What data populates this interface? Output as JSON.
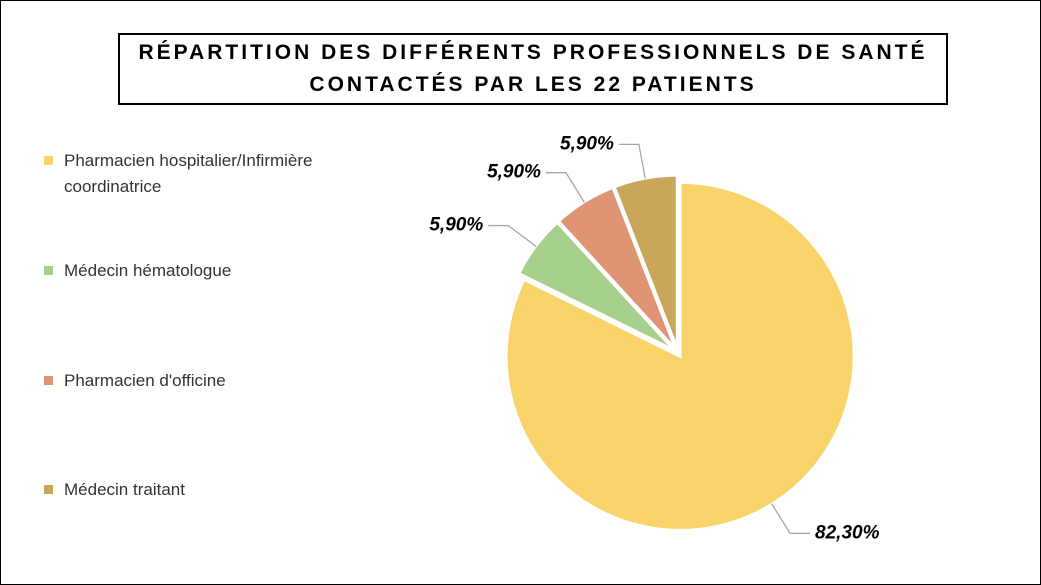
{
  "chart_data": {
    "type": "pie",
    "title": "RÉPARTITION DES DIFFÉRENTS PROFESSIONNELS DE SANTÉ CONTACTÉS PAR LES 22 PATIENTS",
    "categories": [
      "Pharmacien hospitalier/Infirmière coordinatrice",
      "Médecin hématologue",
      "Pharmacien d'officine",
      "Médecin traitant"
    ],
    "values": [
      82.3,
      5.9,
      5.9,
      5.9
    ],
    "value_labels": [
      "82,30%",
      "5,90%",
      "5,90%",
      "5,90%"
    ],
    "colors": [
      "#f9d46b",
      "#a5cf8a",
      "#df9473",
      "#c8a75a"
    ],
    "legend": "left"
  }
}
